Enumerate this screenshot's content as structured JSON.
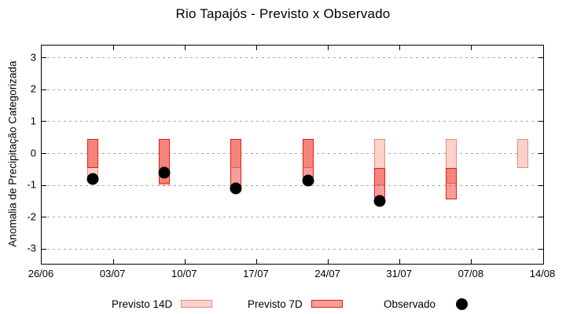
{
  "colors": {
    "previsto_14d_fill": "#fbd2cb",
    "previsto_14d_border": "#e8897d",
    "previsto_7d_fill": "#f59d98",
    "previsto_7d_border": "#e41e10",
    "observado": "#000000",
    "grid": "#a6a6a6",
    "axis": "#000000"
  },
  "chart_data": {
    "type": "bar",
    "title": "Rio Tapajós - Previsto x Observado",
    "xlabel": "",
    "ylabel": "Anomalia de Precipitação Categorizada",
    "ylim": [
      -3.45,
      3.4
    ],
    "yticks": [
      3,
      2,
      1,
      0,
      -1,
      -2,
      -3
    ],
    "xtick_labels": [
      "26/06",
      "03/07",
      "10/07",
      "17/07",
      "24/07",
      "31/07",
      "07/08",
      "14/08"
    ],
    "xtick_day_offsets": [
      0,
      7,
      14,
      21,
      28,
      35,
      42,
      49
    ],
    "x_total_days": 49,
    "grid": "horizontal-dashed",
    "legend_position": "bottom",
    "categories": [
      "01/07",
      "08/07",
      "15/07",
      "22/07",
      "29/07",
      "05/08",
      "12/08"
    ],
    "category_day_offsets": [
      5,
      12,
      19,
      26,
      33,
      40,
      47
    ],
    "series": [
      {
        "name": "Previsto 14D",
        "type": "range-bar",
        "ranges": [
          [
            -0.9,
            0.45
          ],
          [
            -1.0,
            0.45
          ],
          [
            -0.45,
            0.45
          ],
          [
            -0.45,
            0.45
          ],
          [
            -1.0,
            0.45
          ],
          [
            -0.95,
            0.45
          ],
          [
            -0.45,
            0.45
          ]
        ]
      },
      {
        "name": "Previsto 7D",
        "type": "range-bar",
        "ranges": [
          [
            -0.45,
            0.45
          ],
          [
            -0.95,
            0.45
          ],
          [
            -1.0,
            0.45
          ],
          [
            -0.75,
            0.45
          ],
          [
            -1.4,
            -0.45
          ],
          [
            -1.45,
            -0.45
          ],
          null
        ]
      },
      {
        "name": "Observado",
        "type": "scatter",
        "values": [
          -0.8,
          -0.6,
          -1.1,
          -0.85,
          -1.5,
          null,
          null
        ]
      }
    ]
  }
}
